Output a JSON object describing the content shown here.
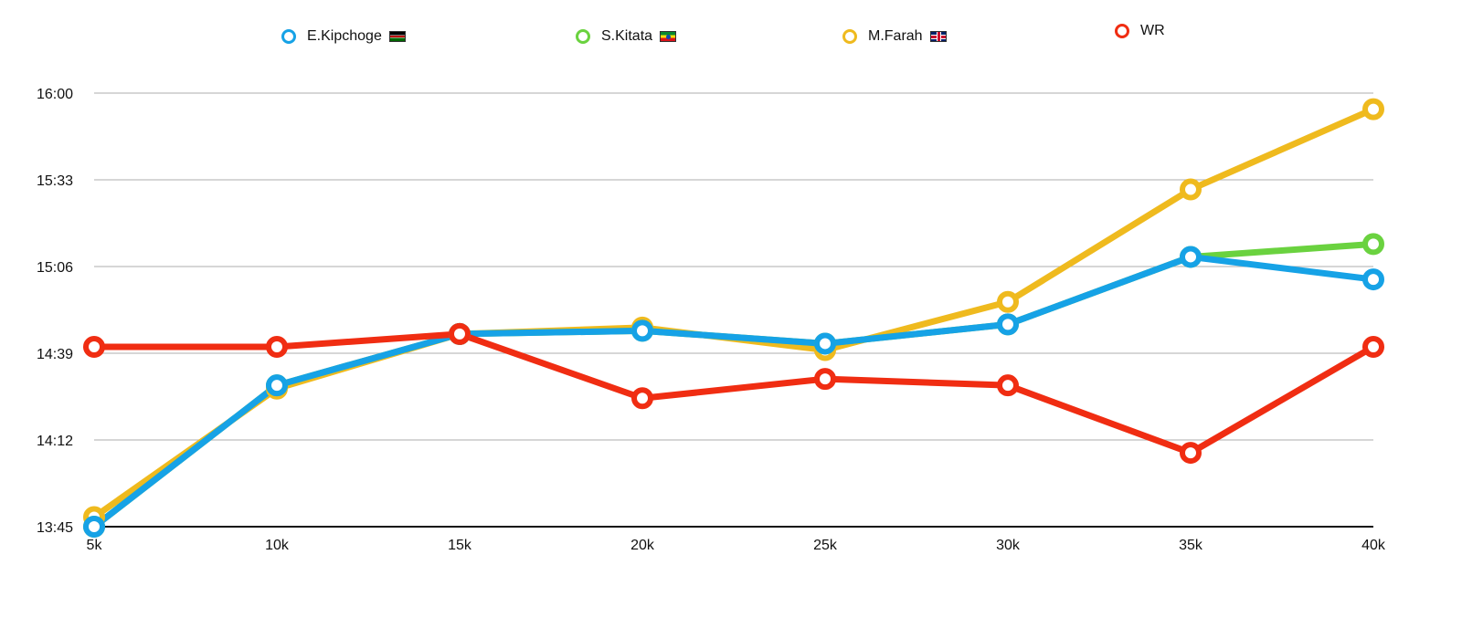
{
  "chart_data": {
    "type": "line",
    "categories": [
      "5k",
      "10k",
      "15k",
      "20k",
      "25k",
      "30k",
      "35k",
      "40k"
    ],
    "y_ticks": [
      "13:45",
      "14:12",
      "14:39",
      "15:06",
      "15:33",
      "16:00"
    ],
    "ylim_seconds": [
      825,
      960
    ],
    "grid": true,
    "legend_position": "top",
    "series": [
      {
        "name": "M.Farah",
        "flag": "uk",
        "color": "#efba1e",
        "values": [
          "13:48",
          "14:28",
          "14:45",
          "14:47",
          "14:40",
          "14:55",
          "15:30",
          "15:55"
        ]
      },
      {
        "name": "S.Kitata",
        "flag": "et",
        "color": "#6ad23f",
        "values": [
          "13:45",
          "14:29",
          "14:45",
          "14:46",
          "14:42",
          "14:48",
          "15:09",
          "15:13"
        ]
      },
      {
        "name": "E.Kipchoge",
        "flag": "ke",
        "color": "#16a2e6",
        "values": [
          "13:45",
          "14:29",
          "14:45",
          "14:46",
          "14:42",
          "14:48",
          "15:09",
          "15:02"
        ]
      },
      {
        "name": "WR",
        "flag": "",
        "color": "#f02d12",
        "values": [
          "14:41",
          "14:41",
          "14:45",
          "14:25",
          "14:31",
          "14:29",
          "14:08",
          "14:41"
        ]
      }
    ],
    "legend_order": [
      2,
      1,
      0,
      3
    ]
  }
}
